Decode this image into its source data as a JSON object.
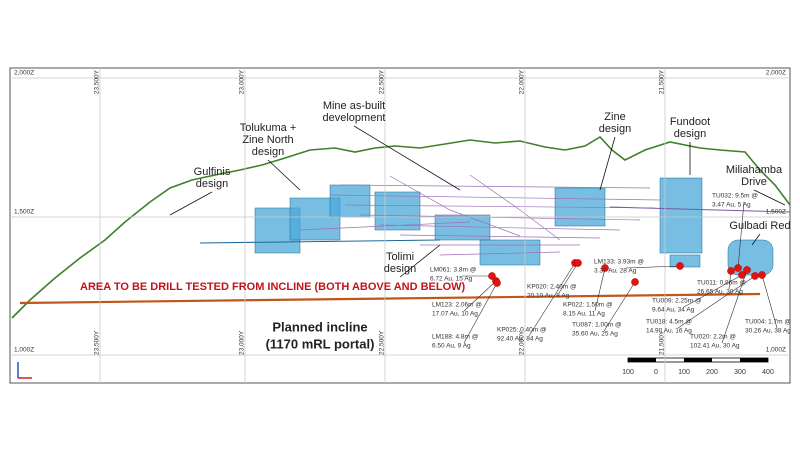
{
  "grid": {
    "z_labels": [
      "2,000Z",
      "1,500Z",
      "1,000Z"
    ],
    "y_labels": [
      "23,500Y",
      "23,000Y",
      "22,500Y",
      "22,000Y",
      "21,500Y"
    ]
  },
  "annotations": [
    {
      "lines": [
        "Gulfinis",
        "design"
      ]
    },
    {
      "lines": [
        "Tolukuma +",
        "Zine North",
        "design"
      ]
    },
    {
      "lines": [
        "Mine as-built",
        "development"
      ]
    },
    {
      "lines": [
        "Zine",
        "design"
      ]
    },
    {
      "lines": [
        "Fundoot",
        "design"
      ]
    },
    {
      "lines": [
        "Miliahamba",
        "Drive"
      ]
    },
    {
      "lines": [
        "Gulbadi Red"
      ]
    },
    {
      "lines": [
        "Tolimi",
        "design"
      ]
    }
  ],
  "banner": "AREA TO BE DRILL TESTED FROM INCLINE (BOTH ABOVE AND BELOW)",
  "incline": [
    "Planned incline",
    "(1170 mRL portal)"
  ],
  "intercepts": [
    {
      "lines": [
        "LM061: 3.8m @",
        "6.72 Au, 15 Ag"
      ]
    },
    {
      "lines": [
        "LM123: 2.06m @",
        "17.07 Au, 10 Ag"
      ]
    },
    {
      "lines": [
        "LM188: 4.8m @",
        "6.50 Au, 9 Ag"
      ]
    },
    {
      "lines": [
        "KP025: 0.40m @",
        "92.40 Au, 84 Ag"
      ]
    },
    {
      "lines": [
        "KP020: 2.40m @",
        "20.10 Au, 8 Ag"
      ]
    },
    {
      "lines": [
        "KP022: 1.50m @",
        "8.15 Au, 11 Ag"
      ]
    },
    {
      "lines": [
        "TU087: 1.00m @",
        "35.60 Au, 25 Ag"
      ]
    },
    {
      "lines": [
        "LM133: 3.93m @",
        "3.37 Au, 28 Ag"
      ]
    },
    {
      "lines": [
        "TU011: 0.86m @",
        "26.65 Au, 30 Ag"
      ]
    },
    {
      "lines": [
        "TU032: 9.5m @",
        "3.47 Au, 5 Ag"
      ]
    },
    {
      "lines": [
        "TU009: 2.25m @",
        "9.64 Au, 34 Ag"
      ]
    },
    {
      "lines": [
        "TU018: 4.5m @",
        "14.90 Au, 16 Ag"
      ]
    },
    {
      "lines": [
        "TU020: 2.2m @",
        "102.41 Au, 30 Ag"
      ]
    },
    {
      "lines": [
        "TU004: 1.7m @",
        "30.26 Au, 38 Ag"
      ]
    }
  ],
  "scale": [
    "100",
    "0",
    "100",
    "200",
    "300",
    "400"
  ]
}
